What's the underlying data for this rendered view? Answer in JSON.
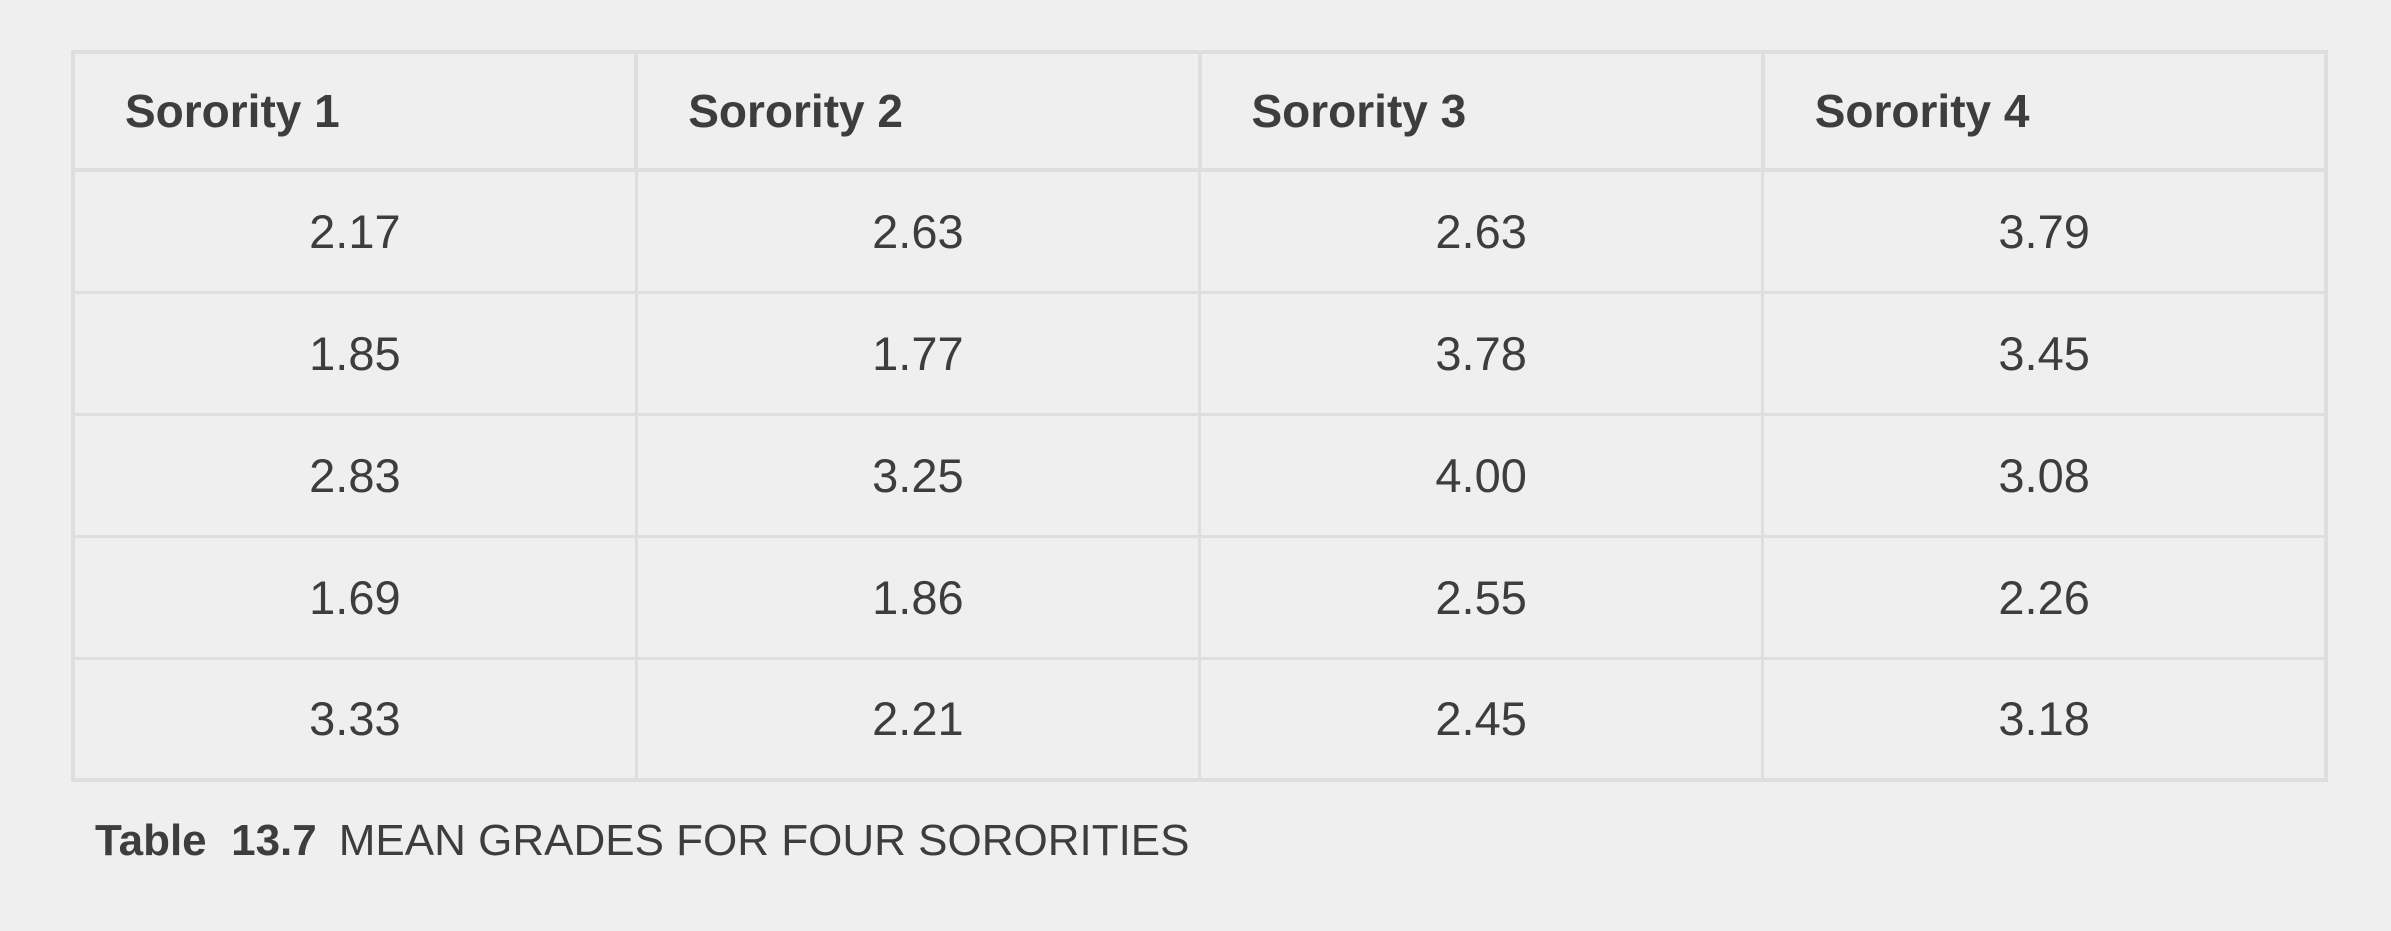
{
  "table": {
    "headers": [
      "Sorority 1",
      "Sorority 2",
      "Sorority 3",
      "Sorority 4"
    ],
    "rows": [
      [
        "2.17",
        "2.63",
        "2.63",
        "3.79"
      ],
      [
        "1.85",
        "1.77",
        "3.78",
        "3.45"
      ],
      [
        "2.83",
        "3.25",
        "4.00",
        "3.08"
      ],
      [
        "1.69",
        "1.86",
        "2.55",
        "2.26"
      ],
      [
        "3.33",
        "2.21",
        "2.45",
        "3.18"
      ]
    ]
  },
  "caption": {
    "label": "Table  13.7",
    "text": "MEAN GRADES FOR FOUR SORORITIES"
  },
  "colors": {
    "background": "#efefef",
    "border": "#dedede",
    "text": "#3d3d3d"
  }
}
